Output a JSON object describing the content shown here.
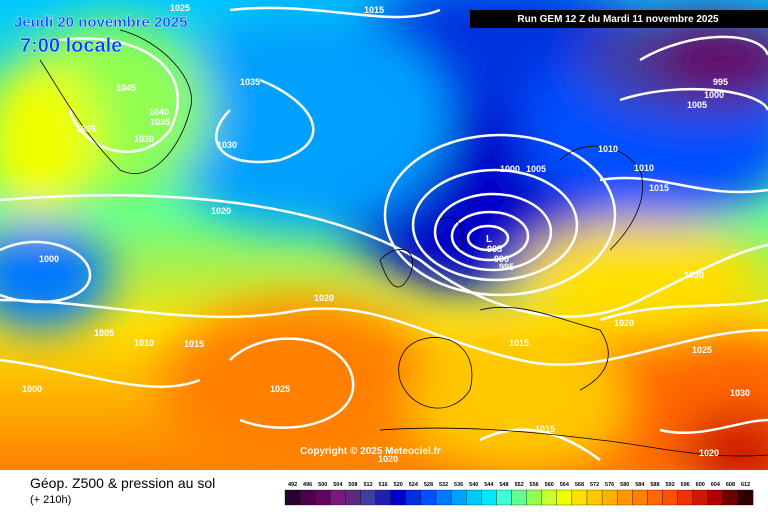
{
  "header": {
    "date": "Jeudi 20 novembre 2025",
    "time": "7:00 locale",
    "run": "Run GEM 12 Z du Mardi 11 novembre 2025"
  },
  "copyright": "Copyright © 2025 Meteociel.fr",
  "footer": {
    "title": "Géop. Z500 & pression au sol",
    "lead": "(+ 210h)"
  },
  "isobar_labels": [
    1025,
    1015,
    1045,
    1035,
    1040,
    1035,
    1035,
    1030,
    1030,
    1000,
    1005,
    1010,
    1010,
    1015,
    995,
    1000,
    1005,
    1020,
    1000,
    985,
    990,
    995,
    1030,
    1020,
    1020,
    1005,
    1010,
    1015,
    1015,
    1025,
    1000,
    1025,
    1030,
    1015,
    1020,
    1020
  ],
  "color_scale": {
    "labels": [
      492,
      496,
      500,
      504,
      508,
      512,
      516,
      520,
      524,
      528,
      532,
      536,
      540,
      544,
      548,
      552,
      556,
      560,
      564,
      568,
      572,
      576,
      580,
      584,
      588,
      592,
      596,
      600,
      604,
      608,
      612
    ],
    "colors": [
      "#2a0030",
      "#4b004b",
      "#650065",
      "#7a1a7a",
      "#5c2a80",
      "#3f3fa0",
      "#2020b0",
      "#0000c8",
      "#0030e0",
      "#0050ff",
      "#0078ff",
      "#00a0ff",
      "#00c8ff",
      "#00e8ff",
      "#40ffd0",
      "#60ff90",
      "#90ff50",
      "#c8ff30",
      "#f0ff00",
      "#ffe000",
      "#ffc800",
      "#ffb000",
      "#ff9800",
      "#ff8000",
      "#ff6800",
      "#ff5000",
      "#f03000",
      "#d01800",
      "#b00000",
      "#700000",
      "#300000"
    ]
  }
}
